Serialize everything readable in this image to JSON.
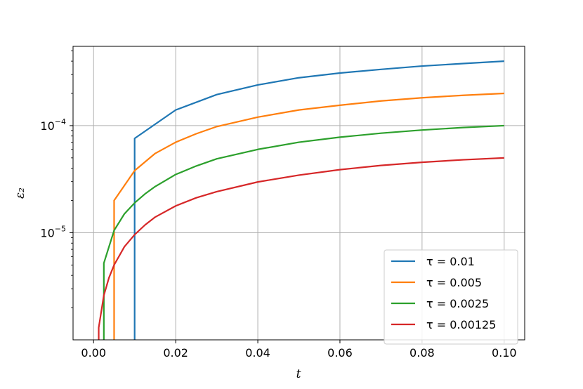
{
  "chart_data": {
    "type": "line",
    "title": "",
    "xlabel": "t",
    "ylabel": "ε₂",
    "xlim": [
      -0.005,
      0.105
    ],
    "ylim": [
      1e-06,
      0.00055
    ],
    "yscale": "log",
    "grid": true,
    "legend_position": "bottom-right",
    "x_ticks": [
      0.0,
      0.02,
      0.04,
      0.06,
      0.08,
      0.1
    ],
    "x_tick_labels": [
      "0.00",
      "0.02",
      "0.04",
      "0.06",
      "0.08",
      "0.10"
    ],
    "y_ticks": [
      {
        "value": 0.0001,
        "base": "10",
        "exp": "−4"
      },
      {
        "value": 1e-05,
        "base": "10",
        "exp": "−5"
      }
    ],
    "series": [
      {
        "name": "τ = 0.01",
        "color": "#1f77b4",
        "x": [
          0.01,
          0.01,
          0.02,
          0.03,
          0.04,
          0.05,
          0.06,
          0.07,
          0.08,
          0.09,
          0.1
        ],
        "y": [
          1e-06,
          7.6e-05,
          0.00014,
          0.000195,
          0.00024,
          0.00028,
          0.00031,
          0.000335,
          0.00036,
          0.00038,
          0.0004
        ]
      },
      {
        "name": "τ = 0.005",
        "color": "#ff7f0e",
        "x": [
          0.005,
          0.005,
          0.01,
          0.015,
          0.02,
          0.025,
          0.03,
          0.04,
          0.05,
          0.06,
          0.07,
          0.08,
          0.09,
          0.1
        ],
        "y": [
          1e-06,
          2e-05,
          3.8e-05,
          5.5e-05,
          7e-05,
          8.4e-05,
          9.8e-05,
          0.00012,
          0.00014,
          0.000155,
          0.00017,
          0.000182,
          0.000192,
          0.0002
        ]
      },
      {
        "name": "τ = 0.0025",
        "color": "#2ca02c",
        "x": [
          0.0025,
          0.0025,
          0.005,
          0.0075,
          0.01,
          0.0125,
          0.015,
          0.02,
          0.025,
          0.03,
          0.04,
          0.05,
          0.06,
          0.07,
          0.08,
          0.09,
          0.1
        ],
        "y": [
          1e-06,
          5.2e-06,
          1.05e-05,
          1.5e-05,
          1.9e-05,
          2.3e-05,
          2.7e-05,
          3.5e-05,
          4.2e-05,
          4.9e-05,
          6e-05,
          7e-05,
          7.8e-05,
          8.5e-05,
          9.1e-05,
          9.6e-05,
          0.0001
        ]
      },
      {
        "name": "τ = 0.00125",
        "color": "#d62728",
        "x": [
          0.00125,
          0.00125,
          0.0025,
          0.00375,
          0.005,
          0.0075,
          0.01,
          0.0125,
          0.015,
          0.02,
          0.025,
          0.03,
          0.04,
          0.05,
          0.06,
          0.07,
          0.08,
          0.09,
          0.1
        ],
        "y": [
          1e-06,
          1.3e-06,
          2.6e-06,
          3.8e-06,
          5e-06,
          7.4e-06,
          9.6e-06,
          1.18e-05,
          1.4e-05,
          1.78e-05,
          2.12e-05,
          2.42e-05,
          2.98e-05,
          3.45e-05,
          3.88e-05,
          4.25e-05,
          4.55e-05,
          4.8e-05,
          5e-05
        ]
      }
    ]
  }
}
